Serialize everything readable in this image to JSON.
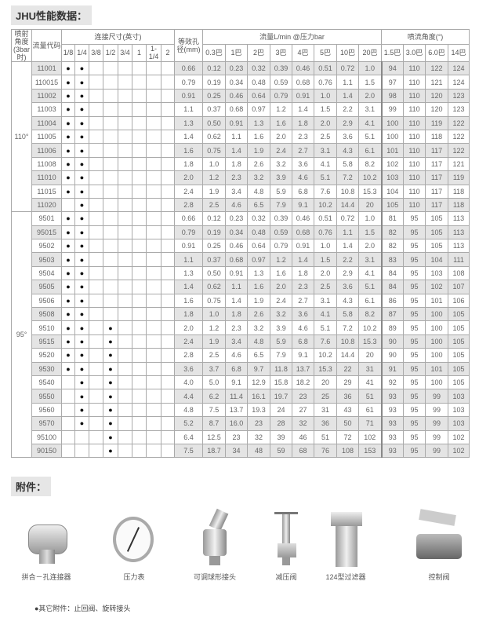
{
  "title": "JHU性能数据：",
  "header": {
    "angle": "喷射角度(3bar时)",
    "code": "流量代码",
    "connection": "连接尺寸(英寸)",
    "sizes": [
      "1/8",
      "1/4",
      "3/8",
      "1/2",
      "3/4",
      "1",
      "1-1/4",
      "2"
    ],
    "orifice": "等效孔径(mm)",
    "flow": "流量L/min @压力bar",
    "pressures": [
      "0.3巴",
      "1巴",
      "2巴",
      "3巴",
      "4巴",
      "5巴",
      "10巴",
      "20巴"
    ],
    "spray": "喷流角度(°)",
    "spray_pressures": [
      "1.5巴",
      "3.0巴",
      "6.0巴",
      "14巴"
    ]
  },
  "groups": [
    {
      "angle": "110°",
      "rows": [
        {
          "code": "11001",
          "dots": [
            "●",
            "●",
            "",
            "",
            "",
            "",
            "",
            ""
          ],
          "orifice": "0.66",
          "flow": [
            "0.12",
            "0.23",
            "0.32",
            "0.39",
            "0.46",
            "0.51",
            "0.72",
            "1.0"
          ],
          "spray": [
            "94",
            "110",
            "122",
            "124"
          ]
        },
        {
          "code": "110015",
          "dots": [
            "●",
            "●",
            "",
            "",
            "",
            "",
            "",
            ""
          ],
          "orifice": "0.79",
          "flow": [
            "0.19",
            "0.34",
            "0.48",
            "0.59",
            "0.68",
            "0.76",
            "1.1",
            "1.5"
          ],
          "spray": [
            "97",
            "110",
            "121",
            "124"
          ]
        },
        {
          "code": "11002",
          "dots": [
            "●",
            "●",
            "",
            "",
            "",
            "",
            "",
            ""
          ],
          "orifice": "0.91",
          "flow": [
            "0.25",
            "0.46",
            "0.64",
            "0.79",
            "0.91",
            "1.0",
            "1.4",
            "2.0"
          ],
          "spray": [
            "98",
            "110",
            "120",
            "123"
          ]
        },
        {
          "code": "11003",
          "dots": [
            "●",
            "●",
            "",
            "",
            "",
            "",
            "",
            ""
          ],
          "orifice": "1.1",
          "flow": [
            "0.37",
            "0.68",
            "0.97",
            "1.2",
            "1.4",
            "1.5",
            "2.2",
            "3.1"
          ],
          "spray": [
            "99",
            "110",
            "120",
            "123"
          ]
        },
        {
          "code": "11004",
          "dots": [
            "●",
            "●",
            "",
            "",
            "",
            "",
            "",
            ""
          ],
          "orifice": "1.3",
          "flow": [
            "0.50",
            "0.91",
            "1.3",
            "1.6",
            "1.8",
            "2.0",
            "2.9",
            "4.1"
          ],
          "spray": [
            "100",
            "110",
            "119",
            "122"
          ]
        },
        {
          "code": "11005",
          "dots": [
            "●",
            "●",
            "",
            "",
            "",
            "",
            "",
            ""
          ],
          "orifice": "1.4",
          "flow": [
            "0.62",
            "1.1",
            "1.6",
            "2.0",
            "2.3",
            "2.5",
            "3.6",
            "5.1"
          ],
          "spray": [
            "100",
            "110",
            "118",
            "122"
          ]
        },
        {
          "code": "11006",
          "dots": [
            "●",
            "●",
            "",
            "",
            "",
            "",
            "",
            ""
          ],
          "orifice": "1.6",
          "flow": [
            "0.75",
            "1.4",
            "1.9",
            "2.4",
            "2.7",
            "3.1",
            "4.3",
            "6.1"
          ],
          "spray": [
            "101",
            "110",
            "117",
            "122"
          ]
        },
        {
          "code": "11008",
          "dots": [
            "●",
            "●",
            "",
            "",
            "",
            "",
            "",
            ""
          ],
          "orifice": "1.8",
          "flow": [
            "1.0",
            "1.8",
            "2.6",
            "3.2",
            "3.6",
            "4.1",
            "5.8",
            "8.2"
          ],
          "spray": [
            "102",
            "110",
            "117",
            "121"
          ]
        },
        {
          "code": "11010",
          "dots": [
            "●",
            "●",
            "",
            "",
            "",
            "",
            "",
            ""
          ],
          "orifice": "2.0",
          "flow": [
            "1.2",
            "2.3",
            "3.2",
            "3.9",
            "4.6",
            "5.1",
            "7.2",
            "10.2"
          ],
          "spray": [
            "103",
            "110",
            "117",
            "119"
          ]
        },
        {
          "code": "11015",
          "dots": [
            "●",
            "●",
            "",
            "",
            "",
            "",
            "",
            ""
          ],
          "orifice": "2.4",
          "flow": [
            "1.9",
            "3.4",
            "4.8",
            "5.9",
            "6.8",
            "7.6",
            "10.8",
            "15.3"
          ],
          "spray": [
            "104",
            "110",
            "117",
            "118"
          ]
        },
        {
          "code": "11020",
          "dots": [
            "",
            "●",
            "",
            "",
            "",
            "",
            "",
            ""
          ],
          "orifice": "2.8",
          "flow": [
            "2.5",
            "4.6",
            "6.5",
            "7.9",
            "9.1",
            "10.2",
            "14.4",
            "20"
          ],
          "spray": [
            "105",
            "110",
            "117",
            "118"
          ]
        }
      ]
    },
    {
      "angle": "95°",
      "rows": [
        {
          "code": "9501",
          "dots": [
            "●",
            "●",
            "",
            "",
            "",
            "",
            "",
            ""
          ],
          "orifice": "0.66",
          "flow": [
            "0.12",
            "0.23",
            "0.32",
            "0.39",
            "0.46",
            "0.51",
            "0.72",
            "1.0"
          ],
          "spray": [
            "81",
            "95",
            "105",
            "113"
          ]
        },
        {
          "code": "95015",
          "dots": [
            "●",
            "●",
            "",
            "",
            "",
            "",
            "",
            ""
          ],
          "orifice": "0.79",
          "flow": [
            "0.19",
            "0.34",
            "0.48",
            "0.59",
            "0.68",
            "0.76",
            "1.1",
            "1.5"
          ],
          "spray": [
            "82",
            "95",
            "105",
            "113"
          ]
        },
        {
          "code": "9502",
          "dots": [
            "●",
            "●",
            "",
            "",
            "",
            "",
            "",
            ""
          ],
          "orifice": "0.91",
          "flow": [
            "0.25",
            "0.46",
            "0.64",
            "0.79",
            "0.91",
            "1.0",
            "1.4",
            "2.0"
          ],
          "spray": [
            "82",
            "95",
            "105",
            "113"
          ]
        },
        {
          "code": "9503",
          "dots": [
            "●",
            "●",
            "",
            "",
            "",
            "",
            "",
            ""
          ],
          "orifice": "1.1",
          "flow": [
            "0.37",
            "0.68",
            "0.97",
            "1.2",
            "1.4",
            "1.5",
            "2.2",
            "3.1"
          ],
          "spray": [
            "83",
            "95",
            "104",
            "111"
          ]
        },
        {
          "code": "9504",
          "dots": [
            "●",
            "●",
            "",
            "",
            "",
            "",
            "",
            ""
          ],
          "orifice": "1.3",
          "flow": [
            "0.50",
            "0.91",
            "1.3",
            "1.6",
            "1.8",
            "2.0",
            "2.9",
            "4.1"
          ],
          "spray": [
            "84",
            "95",
            "103",
            "108"
          ]
        },
        {
          "code": "9505",
          "dots": [
            "●",
            "●",
            "",
            "",
            "",
            "",
            "",
            ""
          ],
          "orifice": "1.4",
          "flow": [
            "0.62",
            "1.1",
            "1.6",
            "2.0",
            "2.3",
            "2.5",
            "3.6",
            "5.1"
          ],
          "spray": [
            "84",
            "95",
            "102",
            "107"
          ]
        },
        {
          "code": "9506",
          "dots": [
            "●",
            "●",
            "",
            "",
            "",
            "",
            "",
            ""
          ],
          "orifice": "1.6",
          "flow": [
            "0.75",
            "1.4",
            "1.9",
            "2.4",
            "2.7",
            "3.1",
            "4.3",
            "6.1"
          ],
          "spray": [
            "86",
            "95",
            "101",
            "106"
          ]
        },
        {
          "code": "9508",
          "dots": [
            "●",
            "●",
            "",
            "",
            "",
            "",
            "",
            ""
          ],
          "orifice": "1.8",
          "flow": [
            "1.0",
            "1.8",
            "2.6",
            "3.2",
            "3.6",
            "4.1",
            "5.8",
            "8.2"
          ],
          "spray": [
            "87",
            "95",
            "100",
            "105"
          ]
        },
        {
          "code": "9510",
          "dots": [
            "●",
            "●",
            "",
            "●",
            "",
            "",
            "",
            ""
          ],
          "orifice": "2.0",
          "flow": [
            "1.2",
            "2.3",
            "3.2",
            "3.9",
            "4.6",
            "5.1",
            "7.2",
            "10.2"
          ],
          "spray": [
            "89",
            "95",
            "100",
            "105"
          ]
        },
        {
          "code": "9515",
          "dots": [
            "●",
            "●",
            "",
            "●",
            "",
            "",
            "",
            ""
          ],
          "orifice": "2.4",
          "flow": [
            "1.9",
            "3.4",
            "4.8",
            "5.9",
            "6.8",
            "7.6",
            "10.8",
            "15.3"
          ],
          "spray": [
            "90",
            "95",
            "100",
            "105"
          ]
        },
        {
          "code": "9520",
          "dots": [
            "●",
            "●",
            "",
            "●",
            "",
            "",
            "",
            ""
          ],
          "orifice": "2.8",
          "flow": [
            "2.5",
            "4.6",
            "6.5",
            "7.9",
            "9.1",
            "10.2",
            "14.4",
            "20"
          ],
          "spray": [
            "90",
            "95",
            "100",
            "105"
          ]
        },
        {
          "code": "9530",
          "dots": [
            "●",
            "●",
            "",
            "●",
            "",
            "",
            "",
            ""
          ],
          "orifice": "3.6",
          "flow": [
            "3.7",
            "6.8",
            "9.7",
            "11.8",
            "13.7",
            "15.3",
            "22",
            "31"
          ],
          "spray": [
            "91",
            "95",
            "101",
            "105"
          ]
        },
        {
          "code": "9540",
          "dots": [
            "",
            "●",
            "",
            "●",
            "",
            "",
            "",
            ""
          ],
          "orifice": "4.0",
          "flow": [
            "5.0",
            "9.1",
            "12.9",
            "15.8",
            "18.2",
            "20",
            "29",
            "41"
          ],
          "spray": [
            "92",
            "95",
            "100",
            "105"
          ]
        },
        {
          "code": "9550",
          "dots": [
            "",
            "●",
            "",
            "●",
            "",
            "",
            "",
            ""
          ],
          "orifice": "4.4",
          "flow": [
            "6.2",
            "11.4",
            "16.1",
            "19.7",
            "23",
            "25",
            "36",
            "51"
          ],
          "spray": [
            "93",
            "95",
            "99",
            "103"
          ]
        },
        {
          "code": "9560",
          "dots": [
            "",
            "●",
            "",
            "●",
            "",
            "",
            "",
            ""
          ],
          "orifice": "4.8",
          "flow": [
            "7.5",
            "13.7",
            "19.3",
            "24",
            "27",
            "31",
            "43",
            "61"
          ],
          "spray": [
            "93",
            "95",
            "99",
            "103"
          ]
        },
        {
          "code": "9570",
          "dots": [
            "",
            "●",
            "",
            "●",
            "",
            "",
            "",
            ""
          ],
          "orifice": "5.2",
          "flow": [
            "8.7",
            "16.0",
            "23",
            "28",
            "32",
            "36",
            "50",
            "71"
          ],
          "spray": [
            "93",
            "95",
            "99",
            "103"
          ]
        },
        {
          "code": "95100",
          "dots": [
            "",
            "",
            "",
            "●",
            "",
            "",
            "",
            ""
          ],
          "orifice": "6.4",
          "flow": [
            "12.5",
            "23",
            "32",
            "39",
            "46",
            "51",
            "72",
            "102"
          ],
          "spray": [
            "93",
            "95",
            "99",
            "102"
          ]
        },
        {
          "code": "90150",
          "dots": [
            "",
            "",
            "",
            "●",
            "",
            "",
            "",
            ""
          ],
          "orifice": "7.5",
          "flow": [
            "18.7",
            "34",
            "48",
            "59",
            "68",
            "76",
            "108",
            "153"
          ],
          "spray": [
            "93",
            "95",
            "99",
            "102"
          ]
        }
      ]
    }
  ],
  "accessories": {
    "title": "附件：",
    "items": [
      {
        "label": "拼合－孔连接器",
        "icon": "split-eyelet-connector"
      },
      {
        "label": "压力表",
        "icon": "pressure-gauge"
      },
      {
        "label": "可调球形接头",
        "icon": "adjustable-ball-fitting"
      },
      {
        "label": "减压阀",
        "icon": "pressure-relief-valve"
      },
      {
        "label": "124型过滤器",
        "icon": "line-strainer"
      },
      {
        "label": "控制阀",
        "icon": "ball-valve"
      }
    ],
    "note": "●其它附件：止回阀、旋转接头"
  }
}
